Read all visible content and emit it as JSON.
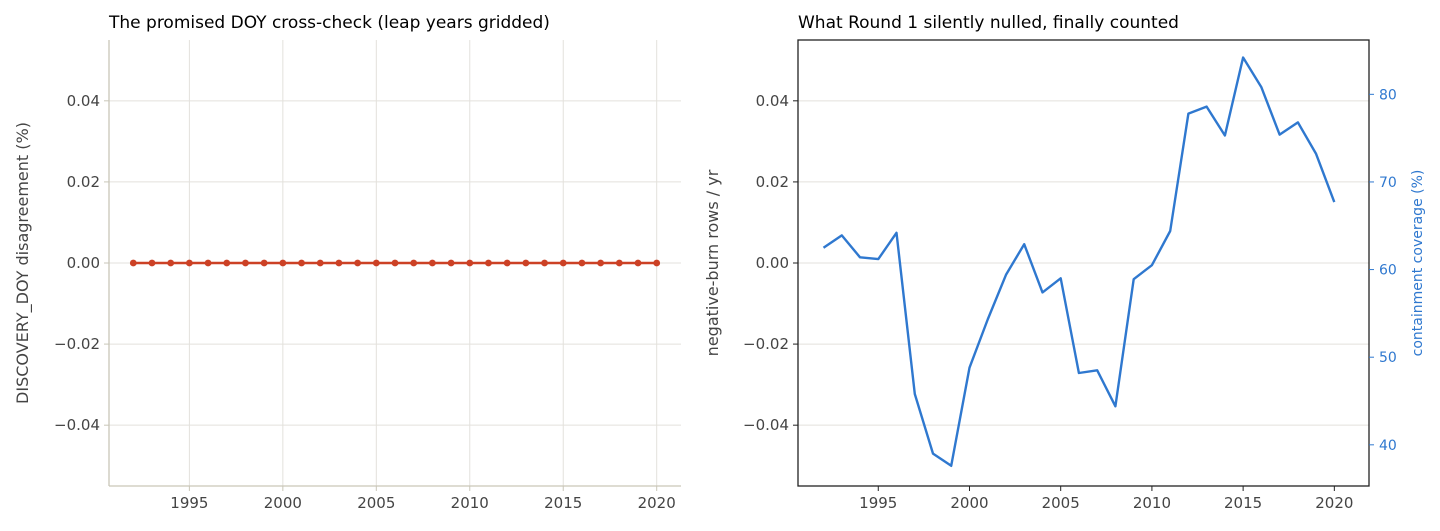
{
  "colors": {
    "left_series": "#cc4125",
    "right_series": "#2f78cf",
    "right_axis": "#2f78cf",
    "left_spine": "#c9c6b8",
    "right_spine": "#222222",
    "grid": "#e3e1dc"
  },
  "chart_data": [
    {
      "type": "line",
      "title": "The promised DOY cross-check (leap years gridded)",
      "xlabel": "",
      "ylabel": "DISCOVERY_DOY disagreement (%)",
      "xlim": [
        1990.7,
        2021.3
      ],
      "ylim": [
        -0.055,
        0.055
      ],
      "xticks": [
        1995,
        2000,
        2005,
        2010,
        2015,
        2020
      ],
      "xtick_labels": [
        "1995",
        "2000",
        "2005",
        "2010",
        "2015",
        "2020"
      ],
      "yticks": [
        -0.04,
        -0.02,
        0.0,
        0.02,
        0.04
      ],
      "ytick_labels": [
        "−0.04",
        "−0.02",
        "0.00",
        "0.02",
        "0.04"
      ],
      "grid": "both",
      "markers": true,
      "series": [
        {
          "x": [
            1992,
            1993,
            1994,
            1995,
            1996,
            1997,
            1998,
            1999,
            2000,
            2001,
            2002,
            2003,
            2004,
            2005,
            2006,
            2007,
            2008,
            2009,
            2010,
            2011,
            2012,
            2013,
            2014,
            2015,
            2016,
            2017,
            2018,
            2019,
            2020
          ],
          "values": [
            0,
            0,
            0,
            0,
            0,
            0,
            0,
            0,
            0,
            0,
            0,
            0,
            0,
            0,
            0,
            0,
            0,
            0,
            0,
            0,
            0,
            0,
            0,
            0,
            0,
            0,
            0,
            0,
            0
          ]
        }
      ]
    },
    {
      "type": "line",
      "title": "What Round 1 silently nulled, finally counted",
      "xlabel": "",
      "ylabel": "negative-burn rows / yr",
      "ylabel_right": "containment coverage (%)",
      "xlim": [
        1990.6,
        2021.9
      ],
      "ylim": [
        -0.055,
        0.055
      ],
      "ylim_right": [
        35.3,
        86.2
      ],
      "xticks": [
        1995,
        2000,
        2005,
        2010,
        2015,
        2020
      ],
      "xtick_labels": [
        "1995",
        "2000",
        "2005",
        "2010",
        "2015",
        "2020"
      ],
      "yticks": [
        -0.04,
        -0.02,
        0.0,
        0.02,
        0.04
      ],
      "ytick_labels": [
        "−0.04",
        "−0.02",
        "0.00",
        "0.02",
        "0.04"
      ],
      "yticks_right": [
        40,
        50,
        60,
        70,
        80
      ],
      "ytick_labels_right": [
        "40",
        "50",
        "60",
        "70",
        "80"
      ],
      "grid": "horizontal",
      "series": [
        {
          "axis": "right",
          "x": [
            1992,
            1993,
            1994,
            1995,
            1996,
            1997,
            1998,
            1999,
            2000,
            2001,
            2002,
            2003,
            2004,
            2005,
            2006,
            2007,
            2008,
            2009,
            2010,
            2011,
            2012,
            2013,
            2014,
            2015,
            2016,
            2017,
            2018,
            2019,
            2020
          ],
          "values": [
            62.5,
            63.9,
            61.4,
            61.2,
            64.2,
            45.8,
            39.0,
            37.6,
            48.8,
            54.3,
            59.4,
            62.9,
            57.4,
            59.0,
            48.2,
            48.5,
            44.4,
            58.9,
            60.5,
            64.4,
            77.8,
            78.6,
            75.3,
            84.2,
            80.8,
            75.4,
            76.8,
            73.2,
            67.7
          ]
        }
      ]
    }
  ]
}
